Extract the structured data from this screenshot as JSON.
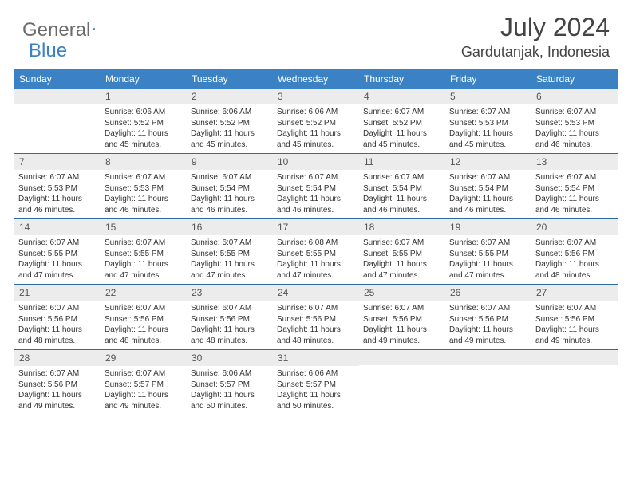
{
  "logo": {
    "text1": "General",
    "text2": "Blue"
  },
  "title": "July 2024",
  "location": "Gardutanjak, Indonesia",
  "colors": {
    "header_bg": "#3b82c4",
    "border": "#2e6da4",
    "daynum_bg": "#ececec",
    "text": "#333333"
  },
  "dayNames": [
    "Sunday",
    "Monday",
    "Tuesday",
    "Wednesday",
    "Thursday",
    "Friday",
    "Saturday"
  ],
  "weeks": [
    [
      {
        "n": "",
        "sr": "",
        "ss": "",
        "dl": ""
      },
      {
        "n": "1",
        "sr": "6:06 AM",
        "ss": "5:52 PM",
        "dl": "11 hours and 45 minutes."
      },
      {
        "n": "2",
        "sr": "6:06 AM",
        "ss": "5:52 PM",
        "dl": "11 hours and 45 minutes."
      },
      {
        "n": "3",
        "sr": "6:06 AM",
        "ss": "5:52 PM",
        "dl": "11 hours and 45 minutes."
      },
      {
        "n": "4",
        "sr": "6:07 AM",
        "ss": "5:52 PM",
        "dl": "11 hours and 45 minutes."
      },
      {
        "n": "5",
        "sr": "6:07 AM",
        "ss": "5:53 PM",
        "dl": "11 hours and 45 minutes."
      },
      {
        "n": "6",
        "sr": "6:07 AM",
        "ss": "5:53 PM",
        "dl": "11 hours and 46 minutes."
      }
    ],
    [
      {
        "n": "7",
        "sr": "6:07 AM",
        "ss": "5:53 PM",
        "dl": "11 hours and 46 minutes."
      },
      {
        "n": "8",
        "sr": "6:07 AM",
        "ss": "5:53 PM",
        "dl": "11 hours and 46 minutes."
      },
      {
        "n": "9",
        "sr": "6:07 AM",
        "ss": "5:54 PM",
        "dl": "11 hours and 46 minutes."
      },
      {
        "n": "10",
        "sr": "6:07 AM",
        "ss": "5:54 PM",
        "dl": "11 hours and 46 minutes."
      },
      {
        "n": "11",
        "sr": "6:07 AM",
        "ss": "5:54 PM",
        "dl": "11 hours and 46 minutes."
      },
      {
        "n": "12",
        "sr": "6:07 AM",
        "ss": "5:54 PM",
        "dl": "11 hours and 46 minutes."
      },
      {
        "n": "13",
        "sr": "6:07 AM",
        "ss": "5:54 PM",
        "dl": "11 hours and 46 minutes."
      }
    ],
    [
      {
        "n": "14",
        "sr": "6:07 AM",
        "ss": "5:55 PM",
        "dl": "11 hours and 47 minutes."
      },
      {
        "n": "15",
        "sr": "6:07 AM",
        "ss": "5:55 PM",
        "dl": "11 hours and 47 minutes."
      },
      {
        "n": "16",
        "sr": "6:07 AM",
        "ss": "5:55 PM",
        "dl": "11 hours and 47 minutes."
      },
      {
        "n": "17",
        "sr": "6:08 AM",
        "ss": "5:55 PM",
        "dl": "11 hours and 47 minutes."
      },
      {
        "n": "18",
        "sr": "6:07 AM",
        "ss": "5:55 PM",
        "dl": "11 hours and 47 minutes."
      },
      {
        "n": "19",
        "sr": "6:07 AM",
        "ss": "5:55 PM",
        "dl": "11 hours and 47 minutes."
      },
      {
        "n": "20",
        "sr": "6:07 AM",
        "ss": "5:56 PM",
        "dl": "11 hours and 48 minutes."
      }
    ],
    [
      {
        "n": "21",
        "sr": "6:07 AM",
        "ss": "5:56 PM",
        "dl": "11 hours and 48 minutes."
      },
      {
        "n": "22",
        "sr": "6:07 AM",
        "ss": "5:56 PM",
        "dl": "11 hours and 48 minutes."
      },
      {
        "n": "23",
        "sr": "6:07 AM",
        "ss": "5:56 PM",
        "dl": "11 hours and 48 minutes."
      },
      {
        "n": "24",
        "sr": "6:07 AM",
        "ss": "5:56 PM",
        "dl": "11 hours and 48 minutes."
      },
      {
        "n": "25",
        "sr": "6:07 AM",
        "ss": "5:56 PM",
        "dl": "11 hours and 49 minutes."
      },
      {
        "n": "26",
        "sr": "6:07 AM",
        "ss": "5:56 PM",
        "dl": "11 hours and 49 minutes."
      },
      {
        "n": "27",
        "sr": "6:07 AM",
        "ss": "5:56 PM",
        "dl": "11 hours and 49 minutes."
      }
    ],
    [
      {
        "n": "28",
        "sr": "6:07 AM",
        "ss": "5:56 PM",
        "dl": "11 hours and 49 minutes."
      },
      {
        "n": "29",
        "sr": "6:07 AM",
        "ss": "5:57 PM",
        "dl": "11 hours and 49 minutes."
      },
      {
        "n": "30",
        "sr": "6:06 AM",
        "ss": "5:57 PM",
        "dl": "11 hours and 50 minutes."
      },
      {
        "n": "31",
        "sr": "6:06 AM",
        "ss": "5:57 PM",
        "dl": "11 hours and 50 minutes."
      },
      {
        "n": "",
        "sr": "",
        "ss": "",
        "dl": ""
      },
      {
        "n": "",
        "sr": "",
        "ss": "",
        "dl": ""
      },
      {
        "n": "",
        "sr": "",
        "ss": "",
        "dl": ""
      }
    ]
  ],
  "labels": {
    "sunrise": "Sunrise:",
    "sunset": "Sunset:",
    "daylight": "Daylight:"
  }
}
